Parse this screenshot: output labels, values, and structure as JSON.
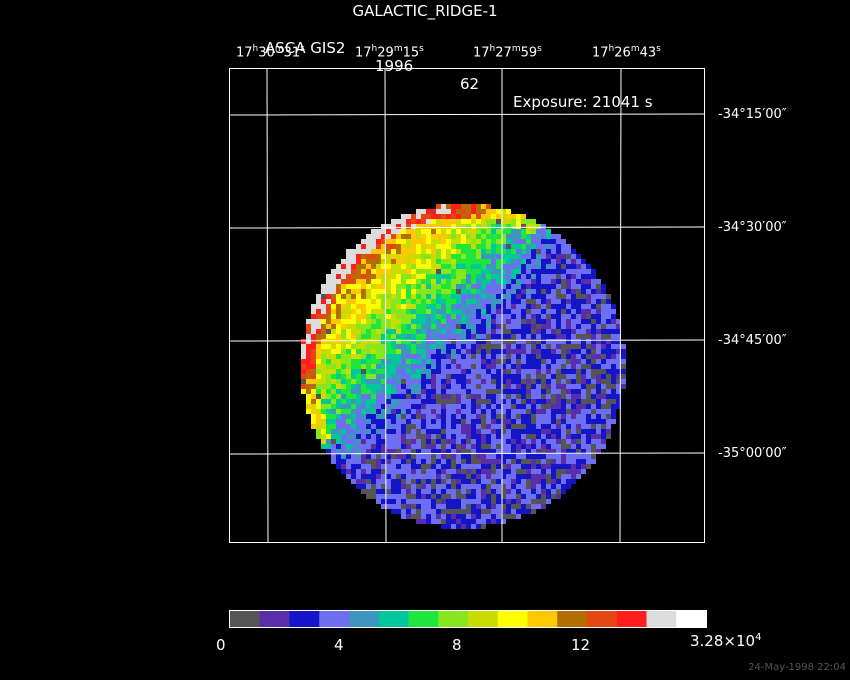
{
  "header": {
    "title": "GALACTIC_RIDGE-1",
    "instrument": "ASCA GIS2",
    "year": "1996",
    "seq": "62",
    "exposure": "Exposure: 21041 s"
  },
  "ra_labels": [
    {
      "h": "17",
      "m": "30",
      "s": "31"
    },
    {
      "h": "17",
      "m": "29",
      "s": "15"
    },
    {
      "h": "17",
      "m": "27",
      "s": "59"
    },
    {
      "h": "17",
      "m": "26",
      "s": "43"
    }
  ],
  "dec_labels": [
    "-34°15′00″",
    "-34°30′00″",
    "-34°45′00″",
    "-35°00′00″"
  ],
  "colorbar": {
    "colors": [
      "#555555",
      "#5a2ea8",
      "#1414c8",
      "#6e6ef0",
      "#3c96be",
      "#00c89b",
      "#1ee63c",
      "#87e61e",
      "#c8dc00",
      "#ffff00",
      "#ffc800",
      "#b46e00",
      "#e64614",
      "#ff1e1e",
      "#dcdcdc",
      "#ffffff"
    ],
    "ticks": [
      "0",
      "4",
      "8",
      "12"
    ],
    "max_label_base": "3.28×10",
    "max_label_exp": "4"
  },
  "footer": "24-May-1998 22:04"
}
